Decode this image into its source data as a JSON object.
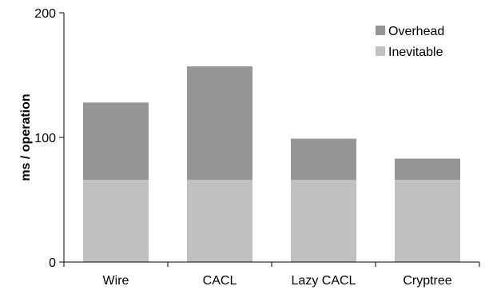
{
  "chart_data": {
    "type": "bar",
    "stacked": true,
    "categories": [
      "Wire",
      "CACL",
      "Lazy CACL",
      "Cryptree"
    ],
    "series": [
      {
        "name": "Inevitable",
        "values": [
          66,
          66,
          66,
          66
        ],
        "color": "#c0c0c0"
      },
      {
        "name": "Overhead",
        "values": [
          62,
          91,
          33,
          17
        ],
        "color": "#969696"
      }
    ],
    "ylabel": "ms / operation",
    "ylim": [
      0,
      200
    ],
    "yticks": [
      0,
      100,
      200
    ],
    "legend_position": "top-right",
    "grid": false
  }
}
